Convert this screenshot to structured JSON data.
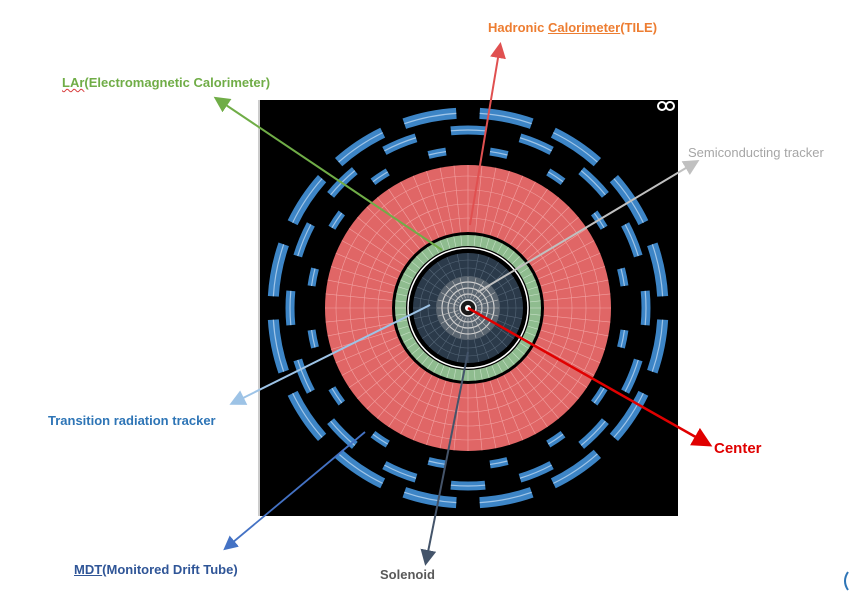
{
  "labels": {
    "hadronic_prefix": "Hadronic ",
    "hadronic_underlined": "Calorimeter",
    "hadronic_suffix": "(TILE)",
    "lar_squiggle": "LAr",
    "lar_rest": "(Electromagnetic Calorimeter)",
    "sct": "Semiconducting tracker",
    "trt": "Transition radiation tracker",
    "center": "Center",
    "mdt_underlined": "MDT",
    "mdt_rest": "(Monitored Drift Tube)",
    "solenoid": "Solenoid"
  },
  "colors": {
    "hadronic": "#ed7d31",
    "lar": "#70ad47",
    "sct": "#a6a6a6",
    "trt": "#2e75b6",
    "center": "#e00000",
    "mdt": "#2f5597",
    "solenoid": "#44546a",
    "tile_fill": "#e06666",
    "lar_fill": "#8fbc8f",
    "muon_fill": "#3d85c6",
    "inner_fill": "#2b3a4a"
  },
  "icons": [
    "eye-icon"
  ]
}
